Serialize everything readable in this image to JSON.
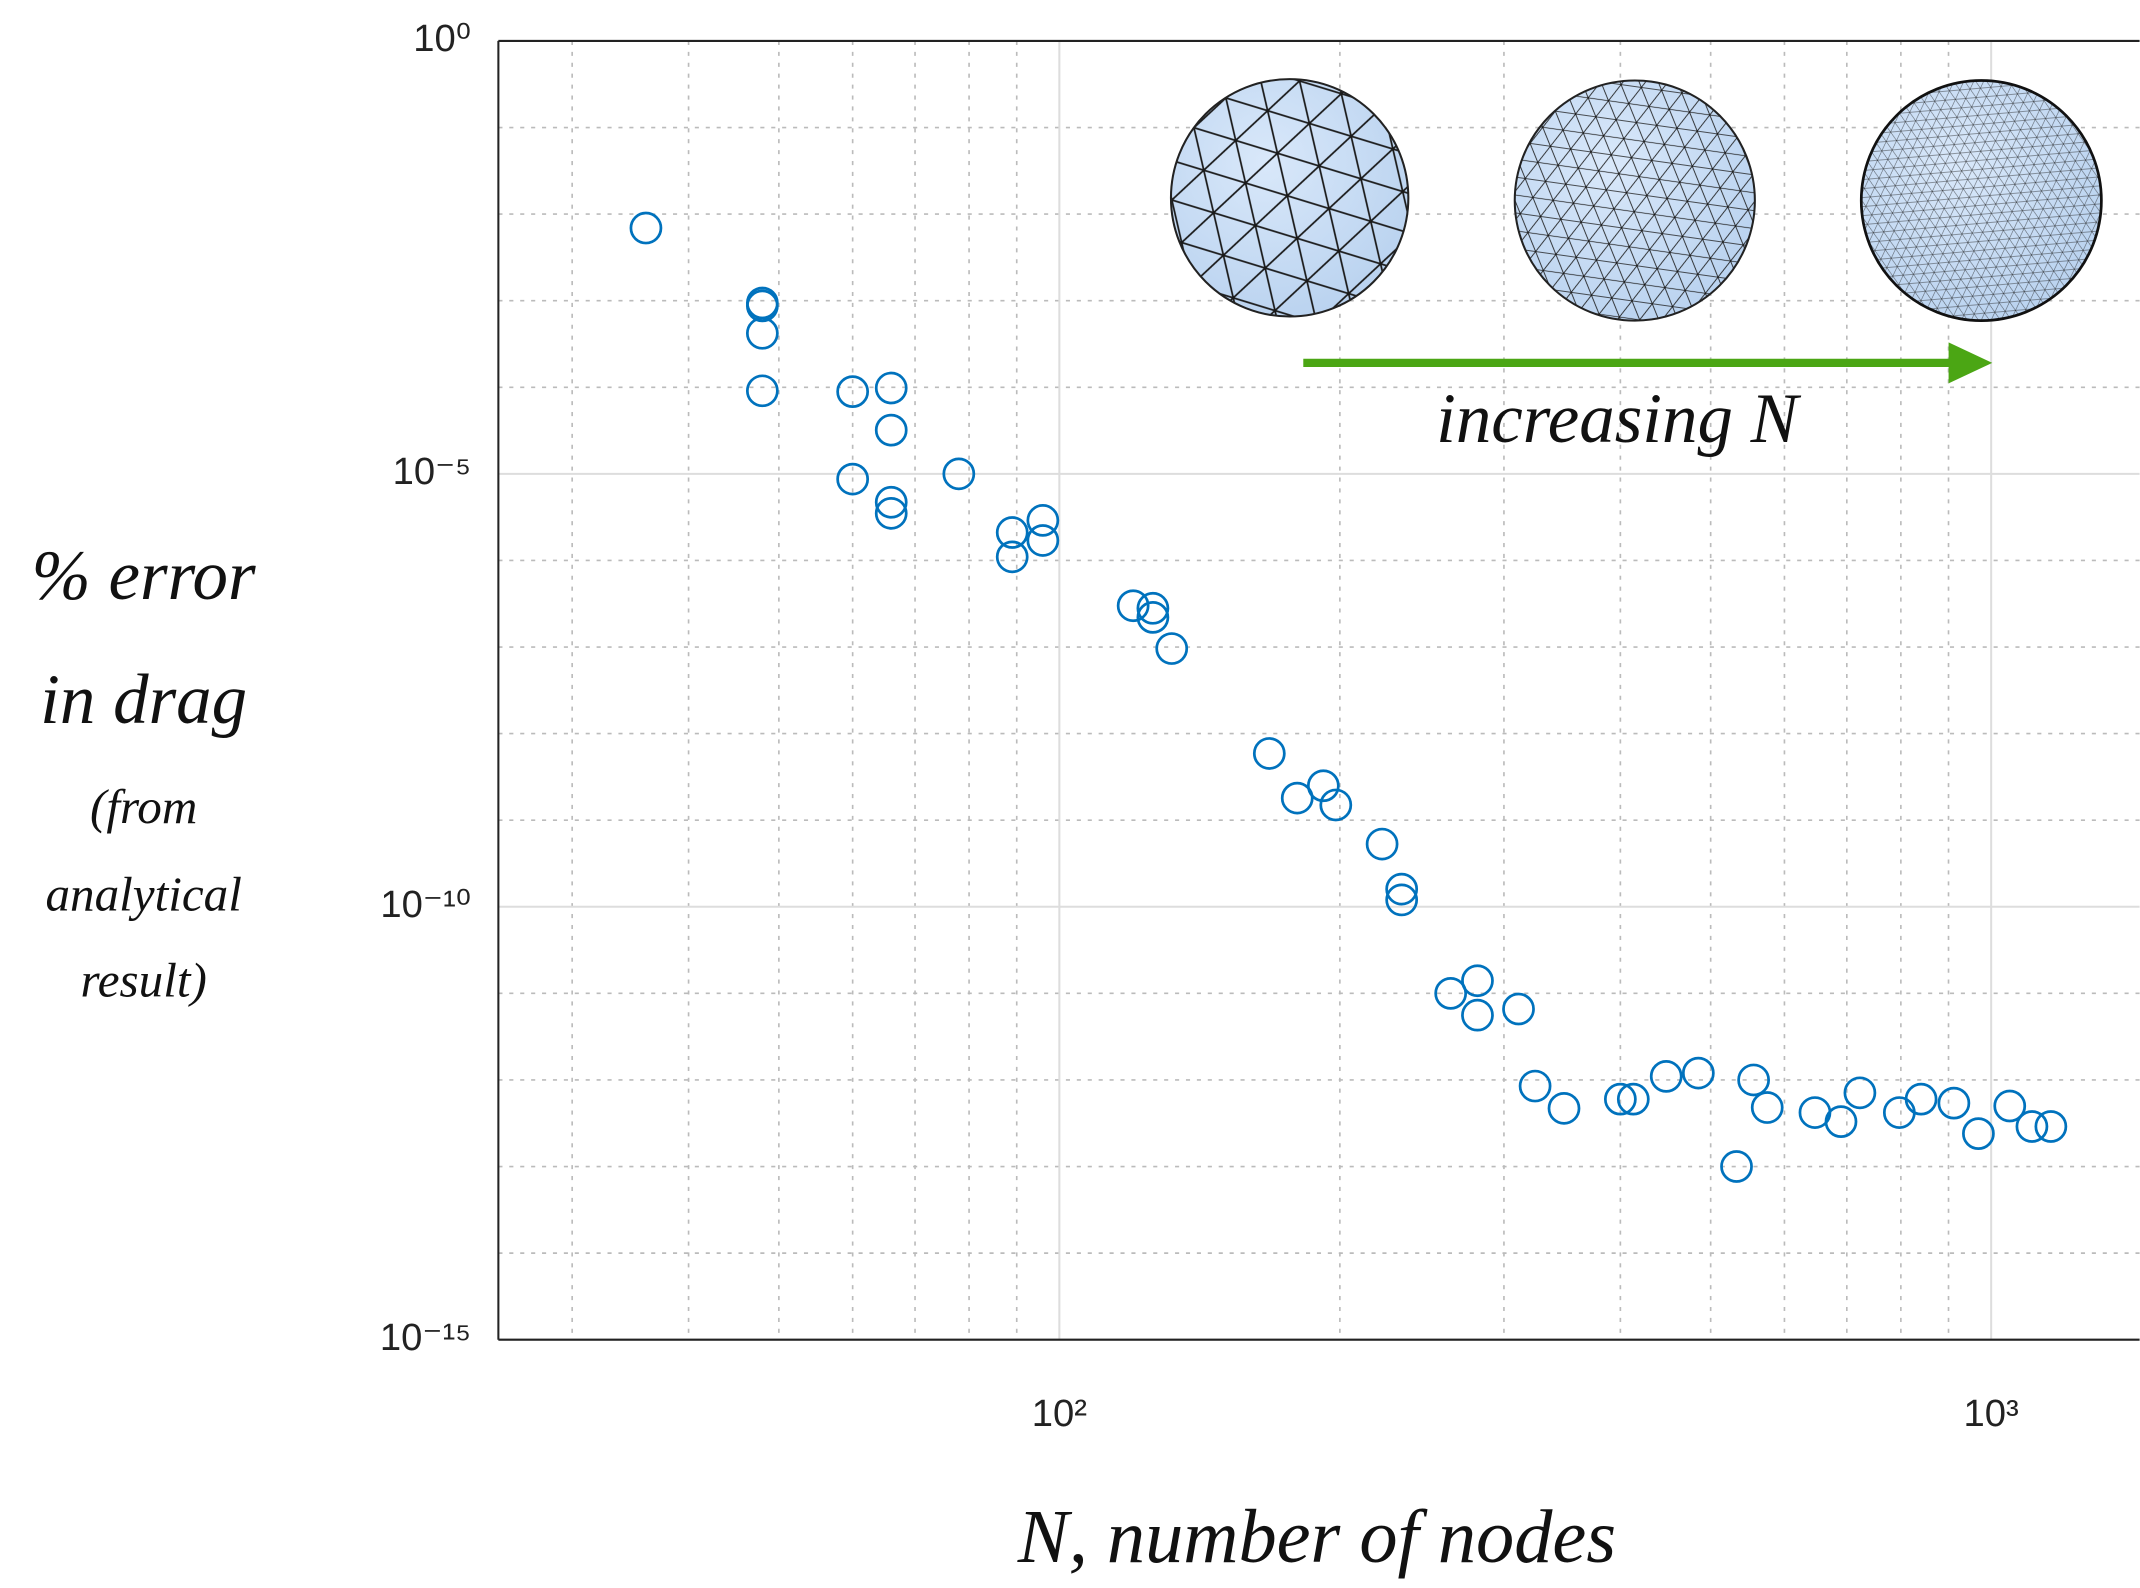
{
  "chart_data": {
    "type": "scatter",
    "x_label": "N, number of nodes",
    "y_label": [
      "% error",
      "in drag",
      "(from",
      "analytical",
      "result)"
    ],
    "annotation": "increasing N",
    "xscale": "log",
    "yscale": "log",
    "xlim": [
      25,
      1450
    ],
    "ylim": [
      1e-15,
      1
    ],
    "xticks": [
      {
        "value": 100,
        "label": "10²"
      },
      {
        "value": 1000,
        "label": "10³"
      }
    ],
    "yticks": [
      {
        "value": 1e-15,
        "label": "10⁻¹⁵"
      },
      {
        "value": 1e-10,
        "label": "10⁻¹⁰"
      },
      {
        "value": 1e-05,
        "label": "10⁻⁵"
      },
      {
        "value": 1,
        "label": "10⁰"
      }
    ],
    "x_minor_ticks": [
      30,
      40,
      50,
      60,
      70,
      80,
      90,
      200,
      300,
      400,
      500,
      600,
      700,
      800,
      900
    ],
    "y_minor_ticks": [
      1e-14,
      1e-13,
      1e-12,
      1e-11,
      1e-09,
      1e-08,
      1e-07,
      1e-06,
      0.0001,
      0.001,
      0.01,
      0.1
    ],
    "grid": true,
    "color": "#0072bd",
    "x": [
      36,
      48,
      48,
      48,
      48,
      60,
      66,
      66,
      60,
      66,
      66,
      78,
      89,
      89,
      96,
      96,
      120,
      126,
      126,
      132,
      168,
      180,
      192,
      198,
      222,
      233,
      233,
      263,
      281,
      281,
      311,
      324,
      348,
      400,
      413,
      448,
      485,
      556,
      575,
      533,
      647,
      690,
      723,
      797,
      841,
      912,
      969,
      1047,
      1106,
      1159
    ],
    "values": [
      0.0069,
      0.00094,
      0.00087,
      0.00042,
      9.1e-05,
      8.9e-05,
      9.8e-05,
      3.2e-05,
      8.7e-06,
      4.7e-06,
      3.5e-06,
      1e-05,
      2.1e-06,
      1.1e-06,
      2.9e-06,
      1.7e-06,
      3e-07,
      2.8e-07,
      2.2e-07,
      9.6e-08,
      5.9e-09,
      1.8e-09,
      2.5e-09,
      1.5e-09,
      5.3e-10,
      1.6e-10,
      1.2e-10,
      1e-11,
      1.4e-11,
      5.6e-12,
      6.6e-12,
      8.5e-13,
      4.7e-13,
      6e-13,
      6e-13,
      1.1e-12,
      1.2e-12,
      1e-12,
      4.8e-13,
      1e-13,
      4.2e-13,
      3.3e-13,
      7.1e-13,
      4.2e-13,
      6e-13,
      5.4e-13,
      2.4e-13,
      5e-13,
      2.9e-13,
      2.9e-13
    ]
  }
}
